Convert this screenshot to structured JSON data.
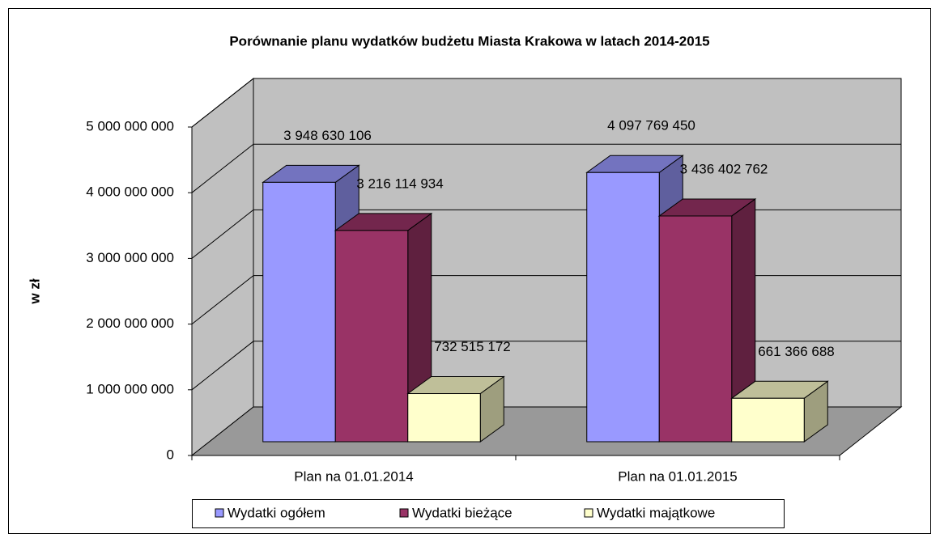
{
  "chart_data": {
    "type": "bar3d",
    "title": "Porównanie planu wydatków budżetu Miasta Krakowa w latach 2014-2015",
    "ylabel": "w zł",
    "categories": [
      "Plan na 01.01.2014",
      "Plan na 01.01.2015"
    ],
    "series": [
      {
        "name": "Wydatki ogółem",
        "color": "#9999ff",
        "values": [
          3948630106,
          4097769450
        ],
        "value_labels": [
          "3 948 630 106",
          "4 097 769 450"
        ]
      },
      {
        "name": "Wydatki bieżące",
        "color": "#993366",
        "values": [
          3216114934,
          3436402762
        ],
        "value_labels": [
          "3 216 114 934",
          "3 436 402 762"
        ]
      },
      {
        "name": "Wydatki majątkowe",
        "color": "#ffffcc",
        "values": [
          732515172,
          661366688
        ],
        "value_labels": [
          "732 515 172",
          "661 366 688"
        ]
      }
    ],
    "ylim": [
      0,
      5000000000
    ],
    "yticks": [
      0,
      {
        "value": 1000000000,
        "label": "1 000 000 000"
      },
      {
        "value": 2000000000,
        "label": "2 000 000 000"
      },
      {
        "value": 3000000000,
        "label": "3 000 000 000"
      },
      {
        "value": 4000000000,
        "label": "4 000 000 000"
      },
      {
        "value": 5000000000,
        "label": "5 000 000 000"
      }
    ],
    "grid": true,
    "legend": "bottom"
  }
}
